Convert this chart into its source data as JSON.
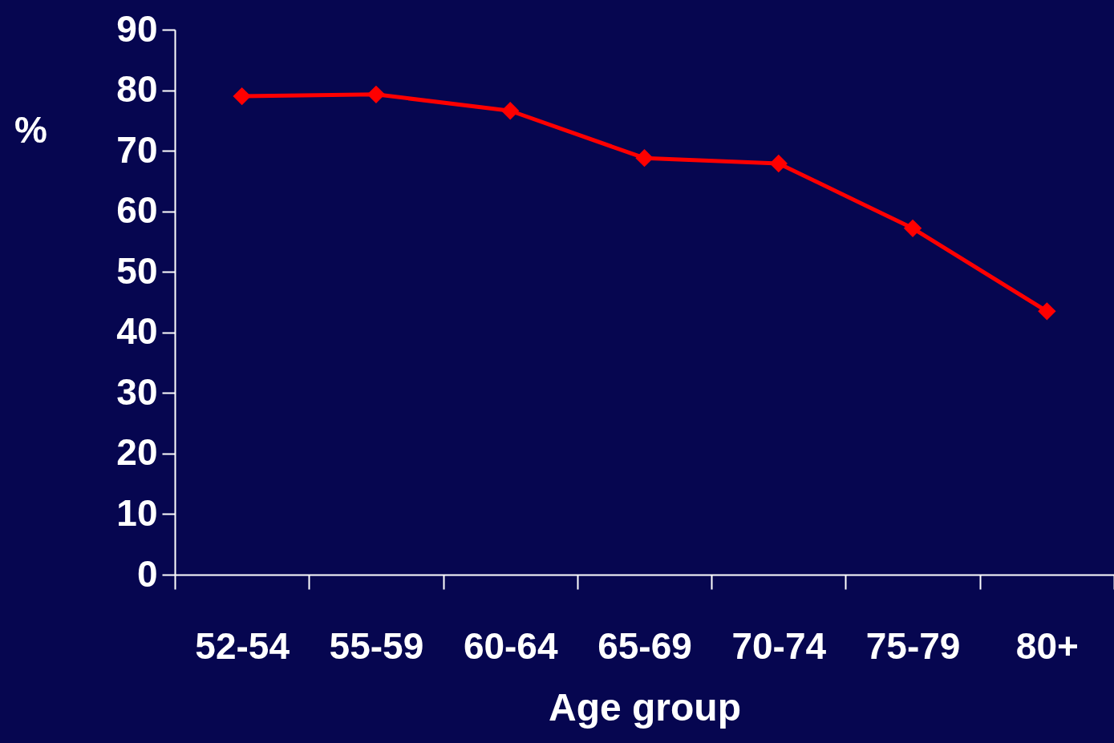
{
  "chart_data": {
    "type": "line",
    "xlabel": "Age group",
    "ylabel": "%",
    "categories": [
      "52-54",
      "55-59",
      "60-64",
      "65-69",
      "70-74",
      "75-79",
      "80+"
    ],
    "series": [
      {
        "color": "#ff0000",
        "values": [
          79.0,
          79.3,
          76.6,
          68.8,
          67.9,
          57.2,
          43.5
        ]
      }
    ],
    "ylim": [
      0,
      90
    ],
    "yticks": [
      0,
      10,
      20,
      30,
      40,
      50,
      60,
      70,
      80,
      90
    ],
    "grid": false,
    "legend": false,
    "marker": "diamond",
    "line_style": "solid"
  }
}
